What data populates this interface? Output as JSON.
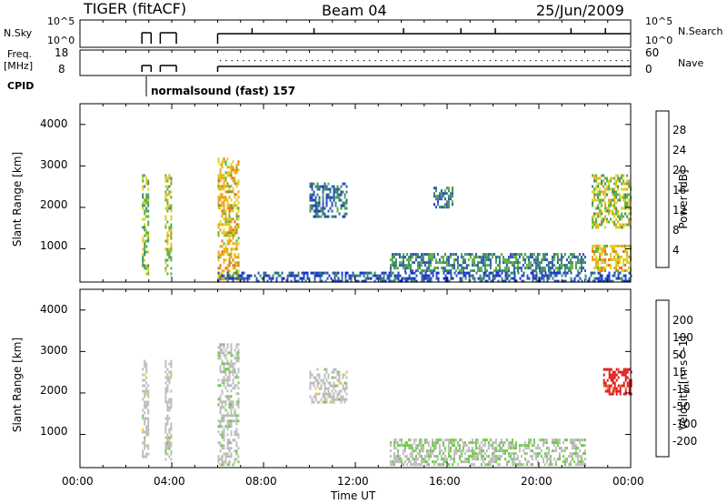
{
  "header": {
    "radar": "TIGER (fitACF)",
    "beam": "Beam 04",
    "date": "25/Jun/2009"
  },
  "top_panels": {
    "nsky_label": "N.Sky",
    "nsky_ticks": [
      "10^5",
      "10^0"
    ],
    "nsearch_label": "N.Search",
    "nsearch_ticks": [
      "10^5",
      "10^0"
    ],
    "freq_label_1": "Freq.",
    "freq_label_2": "[MHz]",
    "freq_ticks": [
      "18",
      "8"
    ],
    "nave_label": "Nave",
    "nave_ticks": [
      "60",
      "0"
    ],
    "cpid_label": "CPID",
    "cpid_text": "normalsound (fast) 157"
  },
  "colors": {
    "power_scale": [
      "#1830d8",
      "#2a55b0",
      "#3e8a6a",
      "#5ab040",
      "#d8d020",
      "#f0a018",
      "#f06818",
      "#e01818"
    ],
    "velocity_scale": [
      "#2838c8",
      "#3070c0",
      "#40a848",
      "#70c848",
      "#bdbdbd",
      "#f0d030",
      "#f0a020",
      "#f06820",
      "#e01818"
    ]
  },
  "chart_data": [
    {
      "type": "heatmap",
      "name": "power",
      "ylabel": "Slant Range [km]",
      "yticks": [
        "1000",
        "2000",
        "3000",
        "4000"
      ],
      "ylim": [
        200,
        4500
      ],
      "xlim": [
        0,
        24
      ],
      "colorbar_label": "Power [dB]",
      "colorbar_ticks": [
        "4",
        "8",
        "12",
        "16",
        "20",
        "24",
        "28"
      ],
      "colorbar_range": [
        0,
        32
      ],
      "echo_regions": [
        {
          "t0": 2.7,
          "t1": 3.0,
          "r0": 400,
          "r1": 2800,
          "level": 14
        },
        {
          "t0": 3.7,
          "t1": 4.0,
          "r0": 400,
          "r1": 2800,
          "level": 16
        },
        {
          "t0": 6.0,
          "t1": 6.9,
          "r0": 300,
          "r1": 3200,
          "level": 20
        },
        {
          "t0": 10.0,
          "t1": 11.6,
          "r0": 1800,
          "r1": 2600,
          "level": 8
        },
        {
          "t0": 15.4,
          "t1": 16.2,
          "r0": 2000,
          "r1": 2500,
          "level": 8
        },
        {
          "t0": 13.5,
          "t1": 22.0,
          "r0": 500,
          "r1": 900,
          "level": 10
        },
        {
          "t0": 6.0,
          "t1": 24.0,
          "r0": 250,
          "r1": 450,
          "level": 6
        },
        {
          "t0": 22.3,
          "t1": 24.0,
          "r0": 1500,
          "r1": 2800,
          "level": 16
        },
        {
          "t0": 22.3,
          "t1": 24.0,
          "r0": 500,
          "r1": 1100,
          "level": 20
        }
      ]
    },
    {
      "type": "heatmap",
      "name": "velocity",
      "ylabel": "Slant Range [km]",
      "yticks": [
        "1000",
        "2000",
        "3000",
        "4000"
      ],
      "ylim": [
        200,
        4500
      ],
      "xlim": [
        0,
        24
      ],
      "xlabel": "Time UT",
      "xticks": [
        "00:00",
        "04:00",
        "08:00",
        "12:00",
        "16:00",
        "20:00",
        "00:00"
      ],
      "colorbar_label": "Velocity [m s^-1]",
      "colorbar_ticks": [
        "200",
        "100",
        "50",
        "15",
        "-15",
        "-50",
        "-100",
        "-200"
      ],
      "colorbar_range": [
        -250,
        250
      ],
      "echo_regions": [
        {
          "t0": 2.7,
          "t1": 3.0,
          "r0": 400,
          "r1": 2800,
          "level": 0
        },
        {
          "t0": 3.7,
          "t1": 4.0,
          "r0": 400,
          "r1": 2800,
          "level": 0
        },
        {
          "t0": 6.0,
          "t1": 6.9,
          "r0": 300,
          "r1": 3200,
          "level": 10
        },
        {
          "t0": 10.0,
          "t1": 11.6,
          "r0": 1800,
          "r1": 2600,
          "level": 0
        },
        {
          "t0": 13.5,
          "t1": 22.0,
          "r0": 300,
          "r1": 900,
          "level": 20
        },
        {
          "t0": 22.8,
          "t1": 24.0,
          "r0": 2000,
          "r1": 2600,
          "level": -220
        }
      ]
    }
  ]
}
